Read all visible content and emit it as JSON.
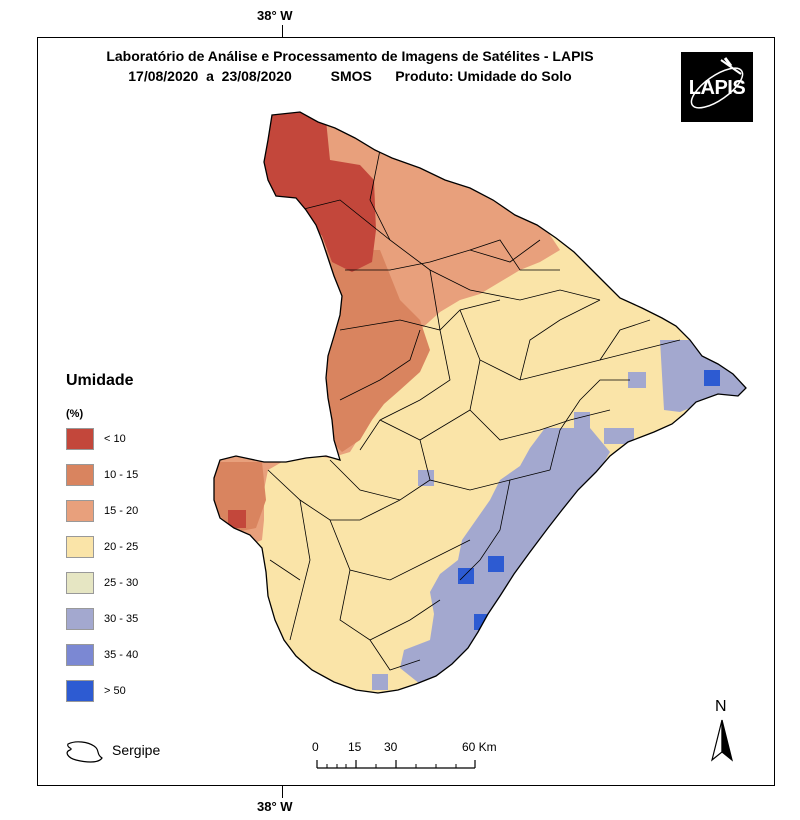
{
  "graticule": {
    "top_label": "38° W",
    "bottom_label": "38° W"
  },
  "title": {
    "line1": "Laboratório de Análise e Processamento de Imagens de Satélites - LAPIS",
    "line2": "17/08/2020  a  23/08/2020          SMOS      Produto: Umidade do Solo"
  },
  "logo": {
    "text": "LAPIS"
  },
  "legend": {
    "title": "Umidade",
    "unit": "(%)",
    "items": [
      {
        "label": "< 10",
        "color": "#c3473b"
      },
      {
        "label": "10 - 15",
        "color": "#d9845f"
      },
      {
        "label": "15 - 20",
        "color": "#e8a07c"
      },
      {
        "label": "20 - 25",
        "color": "#fae4a8"
      },
      {
        "label": "25 - 30",
        "color": "#e6e6c3"
      },
      {
        "label": "30 - 35",
        "color": "#a3a8cf"
      },
      {
        "label": "35 - 40",
        "color": "#7b88d3"
      },
      {
        "label": "> 50",
        "color": "#2d5bd2"
      }
    ]
  },
  "boundary_legend": {
    "label": "Sergipe"
  },
  "scale": {
    "labels": [
      "0",
      "15",
      "30",
      "60 Km"
    ]
  },
  "north": {
    "letter": "N"
  }
}
